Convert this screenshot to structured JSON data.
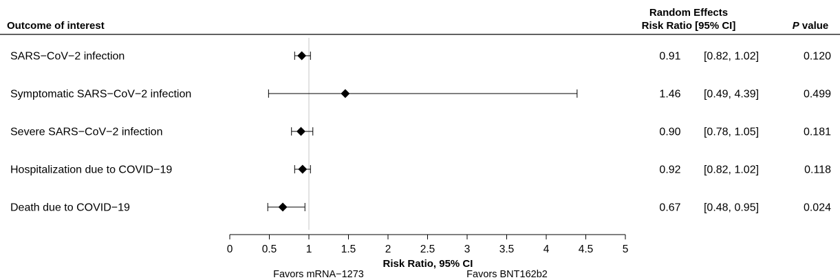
{
  "header": {
    "outcome": "Outcome of interest",
    "effects_line1": "Random Effects",
    "effects_line2": "Risk Ratio [95% CI]",
    "p_italic": "P",
    "p_rest": " value"
  },
  "chart_data": {
    "type": "forest",
    "xlabel": "Risk Ratio, 95% CI",
    "xlim": [
      0,
      5
    ],
    "x_ticks": [
      "0",
      "0.5",
      "1",
      "1.5",
      "2",
      "2.5",
      "3",
      "3.5",
      "4",
      "4.5",
      "5"
    ],
    "reference_line": 1,
    "favors_left": "Favors mRNA−1273",
    "favors_right": "Favors BNT162b2",
    "rows": [
      {
        "outcome": "SARS−CoV−2 infection",
        "rr": 0.91,
        "lo": 0.82,
        "hi": 1.02,
        "rr_text": "0.91",
        "ci_text": "[0.82, 1.02]",
        "p": "0.120"
      },
      {
        "outcome": "Symptomatic SARS−CoV−2 infection",
        "rr": 1.46,
        "lo": 0.49,
        "hi": 4.39,
        "rr_text": "1.46",
        "ci_text": "[0.49, 4.39]",
        "p": "0.499"
      },
      {
        "outcome": "Severe SARS−CoV−2 infection",
        "rr": 0.9,
        "lo": 0.78,
        "hi": 1.05,
        "rr_text": "0.90",
        "ci_text": "[0.78, 1.05]",
        "p": "0.181"
      },
      {
        "outcome": "Hospitalization due to COVID−19",
        "rr": 0.92,
        "lo": 0.82,
        "hi": 1.02,
        "rr_text": "0.92",
        "ci_text": "[0.82, 1.02]",
        "p": "0.118"
      },
      {
        "outcome": "Death due to COVID−19",
        "rr": 0.67,
        "lo": 0.48,
        "hi": 0.95,
        "rr_text": "0.67",
        "ci_text": "[0.48, 0.95]",
        "p": "0.024"
      }
    ]
  }
}
